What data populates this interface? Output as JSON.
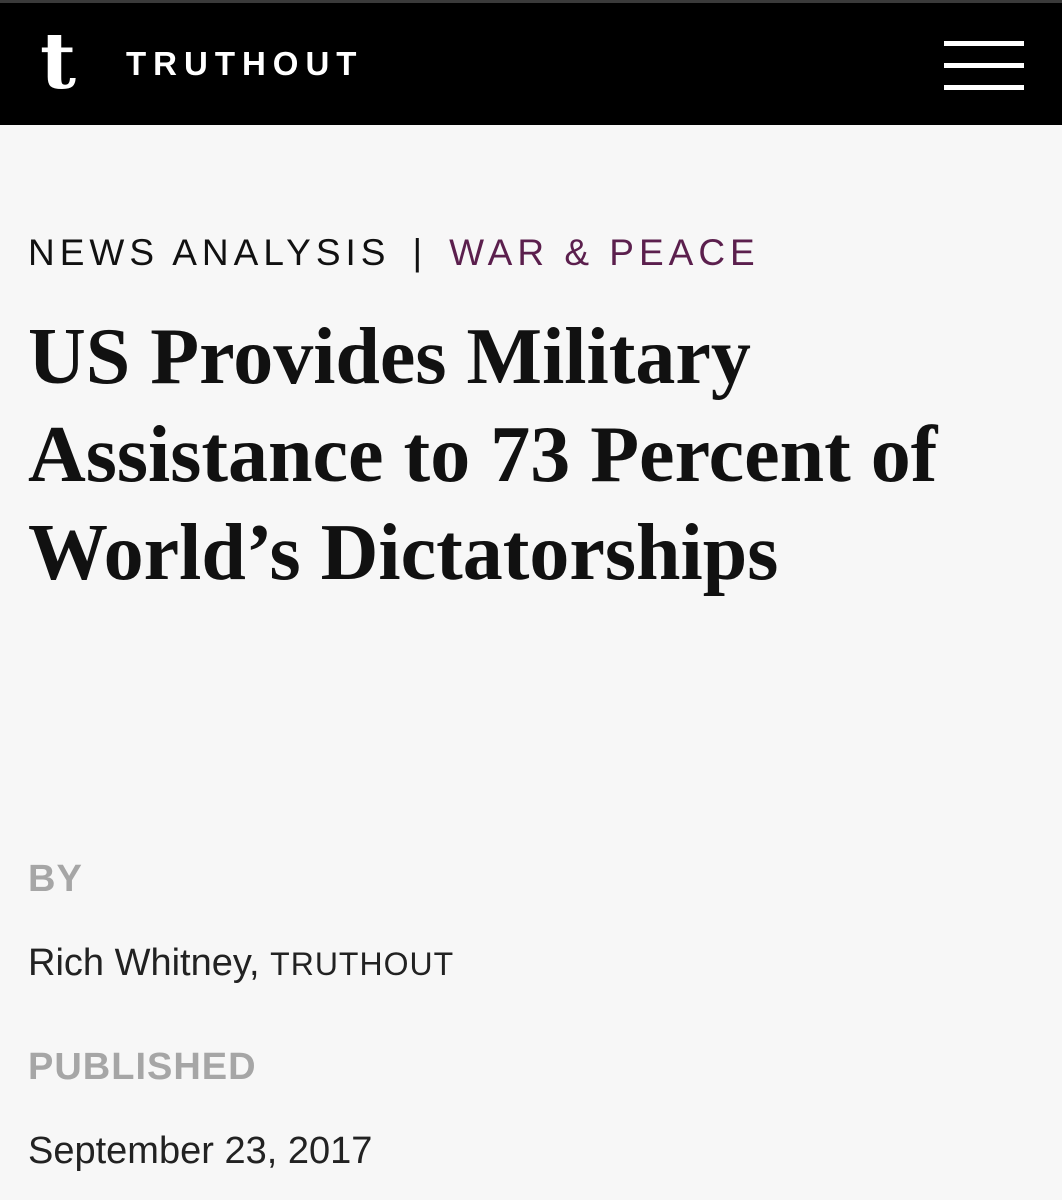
{
  "header": {
    "logo_letter": "t",
    "brand": "TRUTHOUT",
    "menu_icon": "hamburger-menu-icon"
  },
  "article": {
    "kicker": "NEWS ANALYSIS",
    "separator": "|",
    "category": "WAR & PEACE",
    "title": "US Provides Military Assistance to 73 Percent of World’s Dictatorships",
    "by_label": "BY",
    "author": "Rich Whitney,",
    "outlet": "TRUTHOUT",
    "published_label": "PUBLISHED",
    "published_date": "September 23, 2017"
  },
  "colors": {
    "category": "#5b1f4d",
    "header_bg": "#000000"
  }
}
